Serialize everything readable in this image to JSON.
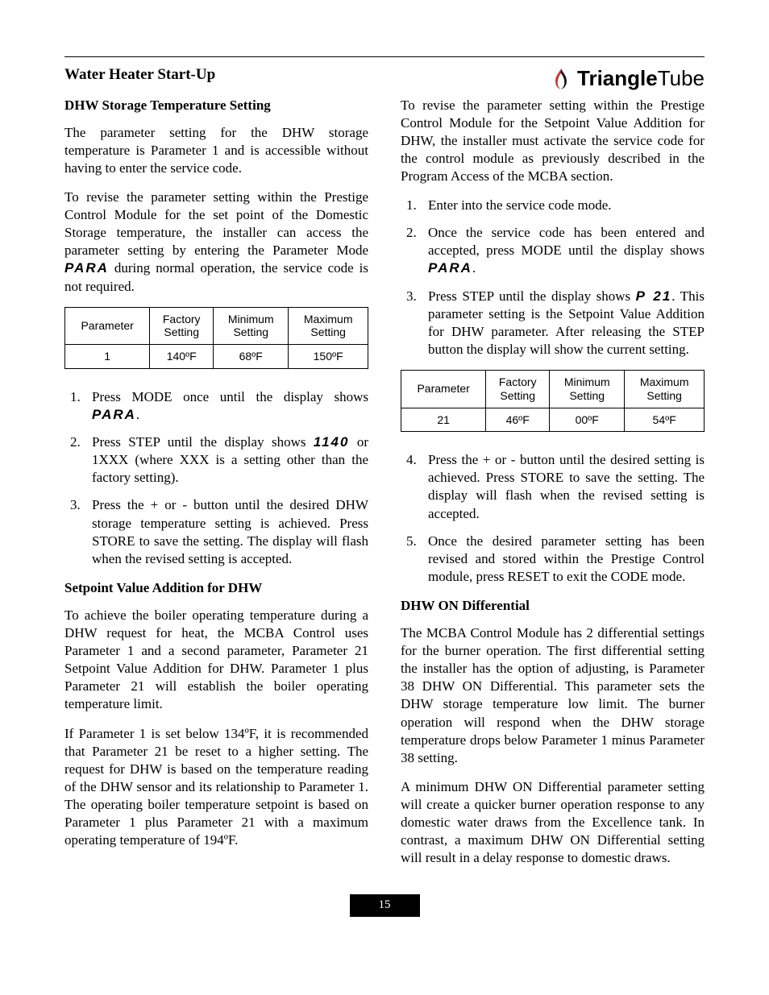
{
  "page": {
    "title": "Water Heater Start-Up",
    "footer_page": "15"
  },
  "brand": {
    "a": "Triangle",
    "b": "Tube"
  },
  "lcd": {
    "para": "PARA",
    "p1140": "1140",
    "p21": "P 21"
  },
  "left": {
    "h1": "DHW Storage Temperature Setting",
    "p1": "The parameter setting for the DHW storage temperature is Parameter 1 and is accessible without having to enter the service code.",
    "p2a": "To revise the parameter setting within the Prestige Control Module for the set point of the Domestic Storage temperature, the installer can access the parameter setting by entering the Parameter Mode ",
    "p2b": " during normal operation, the service code is not required.",
    "table1": {
      "headers": [
        "Parameter",
        "Factory\nSetting",
        "Minimum\nSetting",
        "Maximum\nSetting"
      ],
      "row": [
        "1",
        "140ºF",
        "68ºF",
        "150ºF"
      ]
    },
    "step1a": "Press MODE once until the display shows ",
    "step1b": ".",
    "step2a": "Press STEP until the display shows ",
    "step2b": " or 1XXX (where XXX is a setting other than the factory setting).",
    "step3": "Press the + or - button until the desired DHW storage temperature setting is achieved.  Press STORE to save the setting.  The display will flash when the revised setting is accepted.",
    "h2": "Setpoint Value Addition for DHW",
    "p3": "To achieve the boiler operating temperature during a DHW request for heat, the MCBA Control uses Parameter 1 and a second parameter, Parameter 21 Setpoint Value Addition for DHW. Parameter 1 plus Parameter 21 will establish the boiler operating temperature limit.",
    "p4": "If Parameter 1 is set below 134ºF, it is recommended that Parameter 21 be reset to a higher setting.  The request for DHW is based on the temperature reading of the DHW sensor and its relationship to Parameter 1. The operating boiler temperature setpoint is based on Parameter 1 plus Parameter 21 with a maximum operating temperature of 194ºF."
  },
  "right": {
    "p1": "To revise the parameter setting within the Prestige Control Module for the Setpoint Value Addition for DHW, the installer must activate the service code for the control module as previously described in the Program Access of the MCBA section.",
    "step1": "Enter into the service code mode.",
    "step2a": "Once the service code has been entered and accepted, press MODE until the display shows ",
    "step2b": ".",
    "step3a": "Press STEP until the display shows ",
    "step3b": ". This parameter setting is the Setpoint Value Addition for DHW parameter.  After releasing the STEP button the display will show the current setting.",
    "table2": {
      "headers": [
        "Parameter",
        "Factory\nSetting",
        "Minimum\nSetting",
        "Maximum\nSetting"
      ],
      "row": [
        "21",
        "46ºF",
        "00ºF",
        "54ºF"
      ]
    },
    "step4": "Press the + or - button until the desired setting is achieved.  Press STORE to save the setting.  The display will flash when the revised setting is accepted.",
    "step5": "Once the desired parameter setting has been revised and stored within the Prestige Control module, press RESET to exit the CODE mode.",
    "h1": "DHW ON Differential",
    "p2": "The MCBA Control Module has 2 differential settings for the burner operation. The first differential setting the installer has the option of adjusting, is Parameter 38 DHW ON Differential.  This parameter sets the DHW storage temperature low limit.  The burner operation will respond when the DHW storage temperature drops below  Parameter 1 minus Parameter 38 setting.",
    "p3": "A minimum DHW ON Differential parameter setting will create a quicker burner operation response to any domestic water draws from the Excellence tank.  In contrast, a maximum DHW ON Differential setting will result in a delay response to domestic draws."
  }
}
